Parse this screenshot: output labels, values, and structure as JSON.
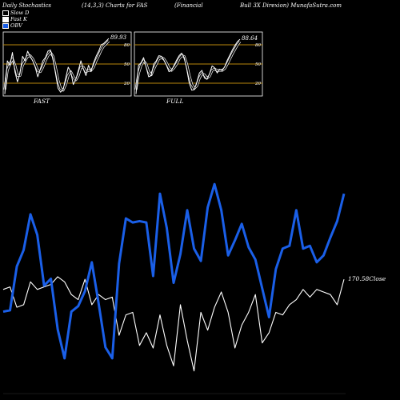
{
  "header": {
    "title": "Daily Stochastics",
    "params": "(14,3,3) Charts for FAS",
    "company": "(Financial",
    "site": "Bull 3X  Direxion) MunafaSutra.com"
  },
  "legend": [
    {
      "label": "Slow  D",
      "color": "#000000"
    },
    {
      "label": "Fast K",
      "color": "#ffffff"
    },
    {
      "label": "OBV",
      "color": "#1a5fe8"
    }
  ],
  "colors": {
    "background": "#000000",
    "obv": "#1a5fe8",
    "close": "#ffffff",
    "level_line": "#b8860b"
  },
  "panels": {
    "fast": {
      "caption": "FAST",
      "last_value": "89.93",
      "tick_labels": [
        "80",
        "50",
        "20"
      ]
    },
    "full": {
      "caption": "FULL",
      "last_value": "88.64",
      "tick_labels": [
        "80",
        "50",
        "20"
      ]
    }
  },
  "main": {
    "close_label": "170.58Close"
  },
  "chart_data": [
    {
      "type": "line",
      "title": "FAST",
      "ylim": [
        0,
        100
      ],
      "levels": [
        20,
        50,
        80
      ],
      "series": [
        {
          "name": "Fast K",
          "values": [
            3,
            55,
            48,
            68,
            38,
            22,
            36,
            62,
            55,
            70,
            62,
            55,
            45,
            30,
            42,
            55,
            60,
            70,
            72,
            58,
            35,
            12,
            6,
            10,
            28,
            45,
            38,
            18,
            26,
            40,
            55,
            42,
            32,
            48,
            38,
            52,
            62,
            70,
            80,
            82,
            86,
            89.93
          ]
        },
        {
          "name": "Slow  D",
          "values": [
            10,
            40,
            50,
            58,
            48,
            32,
            32,
            48,
            55,
            62,
            63,
            58,
            50,
            40,
            38,
            45,
            55,
            63,
            68,
            62,
            45,
            25,
            12,
            9,
            18,
            32,
            38,
            30,
            25,
            32,
            45,
            45,
            38,
            40,
            40,
            45,
            55,
            63,
            72,
            78,
            82,
            86
          ]
        }
      ]
    },
    {
      "type": "line",
      "title": "FULL",
      "ylim": [
        0,
        100
      ],
      "levels": [
        20,
        50,
        80
      ],
      "series": [
        {
          "name": "Fast K",
          "values": [
            3,
            48,
            52,
            60,
            45,
            30,
            32,
            50,
            55,
            63,
            62,
            56,
            48,
            38,
            40,
            48,
            56,
            63,
            67,
            60,
            42,
            20,
            9,
            10,
            22,
            36,
            40,
            28,
            26,
            35,
            47,
            44,
            36,
            42,
            40,
            46,
            56,
            64,
            72,
            79,
            85,
            88.64
          ]
        },
        {
          "name": "Slow  D",
          "values": [
            10,
            35,
            48,
            55,
            50,
            38,
            33,
            42,
            50,
            58,
            60,
            58,
            52,
            44,
            40,
            44,
            50,
            58,
            63,
            62,
            50,
            32,
            18,
            12,
            16,
            28,
            35,
            33,
            28,
            31,
            40,
            42,
            40,
            40,
            40,
            43,
            50,
            58,
            66,
            73,
            80,
            85
          ]
        }
      ]
    },
    {
      "type": "line",
      "title": "",
      "series": [
        {
          "name": "OBV",
          "values": [
            264,
            265,
            297,
            309,
            335,
            320,
            283,
            288,
            251,
            230,
            264,
            268,
            279,
            300,
            270,
            238,
            230,
            299,
            332,
            329,
            330,
            329,
            290,
            350,
            325,
            285,
            306,
            338,
            310,
            301,
            340,
            357,
            338,
            305,
            316,
            328,
            311,
            302,
            281,
            260,
            295,
            310,
            312,
            338,
            310,
            312,
            300,
            305,
            318,
            330,
            350
          ]
        },
        {
          "name": "Close",
          "values": [
            170.2,
            170.3,
            169.5,
            169.6,
            170.5,
            170.2,
            170.3,
            170.4,
            170.7,
            170.5,
            170.0,
            169.8,
            170.6,
            169.6,
            170.0,
            169.8,
            169.9,
            168.4,
            169.2,
            169.3,
            168.0,
            168.5,
            167.9,
            169.2,
            168.0,
            167.2,
            169.6,
            168.2,
            167.0,
            169.3,
            168.6,
            169.5,
            170.1,
            169.3,
            167.9,
            168.8,
            169.3,
            170.0,
            168.1,
            168.5,
            169.3,
            169.2,
            169.6,
            169.8,
            170.2,
            169.9,
            170.2,
            170.1,
            170.0,
            169.6,
            170.6
          ]
        }
      ]
    }
  ]
}
